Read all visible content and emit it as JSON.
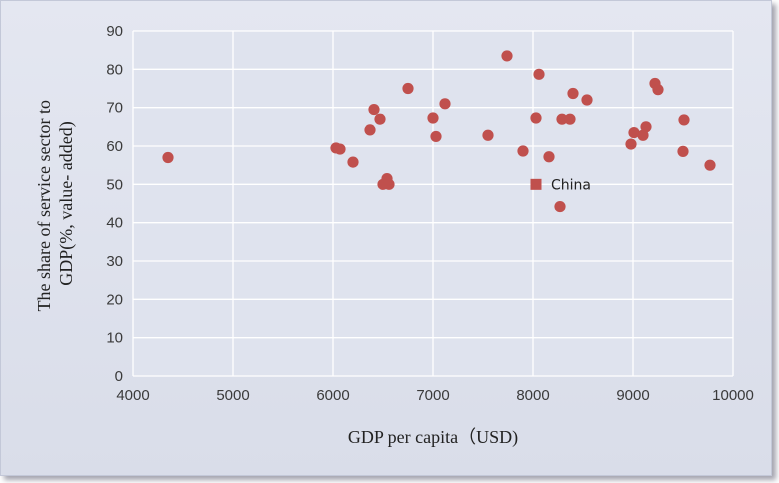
{
  "chart_data": {
    "type": "scatter",
    "xlabel": "GDP per capita（USD)",
    "ylabel_lines": [
      "The share of service  sector to",
      "GDP(%, value- added)"
    ],
    "xlim": [
      4000,
      10000
    ],
    "ylim": [
      0,
      90
    ],
    "x_ticks": [
      4000,
      5000,
      6000,
      7000,
      8000,
      9000,
      10000
    ],
    "y_ticks": [
      0,
      10,
      20,
      30,
      40,
      50,
      60,
      70,
      80,
      90
    ],
    "grid": true,
    "colors": {
      "points": "#c0504d",
      "grid": "#ffffff",
      "plot_bg": "#dfe3ee"
    },
    "series": [
      {
        "points": [
          [
            4350,
            57
          ],
          [
            6030,
            59.5
          ],
          [
            6070,
            59.2
          ],
          [
            6200,
            55.8
          ],
          [
            6370,
            64.2
          ],
          [
            6410,
            69.5
          ],
          [
            6470,
            67
          ],
          [
            6500,
            50
          ],
          [
            6540,
            51.5
          ],
          [
            6560,
            50
          ],
          [
            6750,
            75
          ],
          [
            7000,
            67.3
          ],
          [
            7030,
            62.5
          ],
          [
            7120,
            71
          ],
          [
            7550,
            62.8
          ],
          [
            7740,
            83.5
          ],
          [
            7900,
            58.7
          ],
          [
            8030,
            67.3
          ],
          [
            8060,
            78.7
          ],
          [
            8160,
            57.2
          ],
          [
            8270,
            44.2
          ],
          [
            8290,
            67
          ],
          [
            8370,
            67
          ],
          [
            8400,
            73.7
          ],
          [
            8540,
            72
          ],
          [
            8980,
            60.5
          ],
          [
            9010,
            63.5
          ],
          [
            9100,
            62.8
          ],
          [
            9130,
            65
          ],
          [
            9220,
            76.3
          ],
          [
            9250,
            74.7
          ],
          [
            9500,
            58.6
          ],
          [
            9510,
            66.8
          ],
          [
            9770,
            55
          ]
        ]
      }
    ],
    "highlight": {
      "label": "China",
      "x": 8030,
      "y": 50,
      "marker": "square"
    }
  }
}
